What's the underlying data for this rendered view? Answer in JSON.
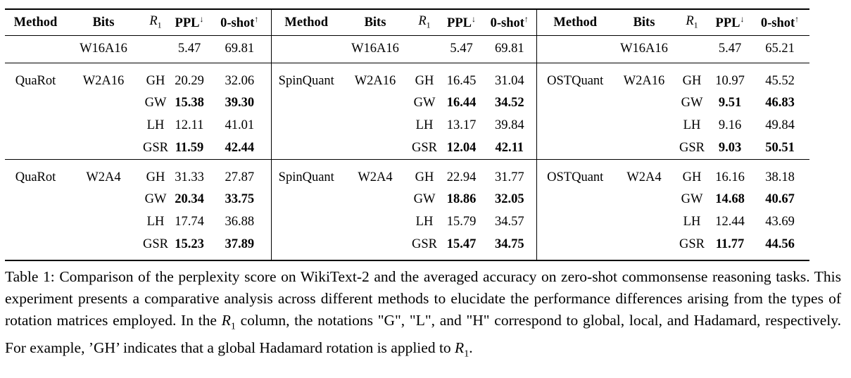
{
  "table": {
    "headers": {
      "method": "Method",
      "bits": "Bits",
      "r1_letter": "R",
      "r1_sub": "1",
      "ppl": "PPL",
      "ppl_arrow": "↓",
      "zeroshot": "0-shot",
      "zeroshot_arrow": "↑"
    },
    "baseline": [
      {
        "bits": "W16A16",
        "ppl": "5.47",
        "zeroshot": "69.81"
      },
      {
        "bits": "W16A16",
        "ppl": "5.47",
        "zeroshot": "69.81"
      },
      {
        "bits": "W16A16",
        "ppl": "5.47",
        "zeroshot": "65.21"
      }
    ],
    "groups": [
      {
        "blocks": [
          {
            "method": "QuaRot",
            "bits": "W2A16",
            "rows": [
              {
                "r1": "GH",
                "ppl": "20.29",
                "zeroshot": "32.06"
              },
              {
                "r1": "GW",
                "ppl": "15.38",
                "zeroshot": "39.30"
              },
              {
                "r1": "LH",
                "ppl": "12.11",
                "zeroshot": "41.01"
              },
              {
                "r1": "GSR",
                "ppl": "11.59",
                "zeroshot": "42.44"
              }
            ]
          },
          {
            "method": "SpinQuant",
            "bits": "W2A16",
            "rows": [
              {
                "r1": "GH",
                "ppl": "16.45",
                "zeroshot": "31.04"
              },
              {
                "r1": "GW",
                "ppl": "16.44",
                "zeroshot": "34.52"
              },
              {
                "r1": "LH",
                "ppl": "13.17",
                "zeroshot": "39.84"
              },
              {
                "r1": "GSR",
                "ppl": "12.04",
                "zeroshot": "42.11"
              }
            ]
          },
          {
            "method": "OSTQuant",
            "bits": "W2A16",
            "rows": [
              {
                "r1": "GH",
                "ppl": "10.97",
                "zeroshot": "45.52"
              },
              {
                "r1": "GW",
                "ppl": "9.51",
                "zeroshot": "46.83"
              },
              {
                "r1": "LH",
                "ppl": "9.16",
                "zeroshot": "49.84"
              },
              {
                "r1": "GSR",
                "ppl": "9.03",
                "zeroshot": "50.51"
              }
            ]
          }
        ]
      },
      {
        "blocks": [
          {
            "method": "QuaRot",
            "bits": "W2A4",
            "rows": [
              {
                "r1": "GH",
                "ppl": "31.33",
                "zeroshot": "27.87"
              },
              {
                "r1": "GW",
                "ppl": "20.34",
                "zeroshot": "33.75"
              },
              {
                "r1": "LH",
                "ppl": "17.74",
                "zeroshot": "36.88"
              },
              {
                "r1": "GSR",
                "ppl": "15.23",
                "zeroshot": "37.89"
              }
            ]
          },
          {
            "method": "SpinQuant",
            "bits": "W2A4",
            "rows": [
              {
                "r1": "GH",
                "ppl": "22.94",
                "zeroshot": "31.77"
              },
              {
                "r1": "GW",
                "ppl": "18.86",
                "zeroshot": "32.05"
              },
              {
                "r1": "LH",
                "ppl": "15.79",
                "zeroshot": "34.57"
              },
              {
                "r1": "GSR",
                "ppl": "15.47",
                "zeroshot": "34.75"
              }
            ]
          },
          {
            "method": "OSTQuant",
            "bits": "W2A4",
            "rows": [
              {
                "r1": "GH",
                "ppl": "16.16",
                "zeroshot": "38.18"
              },
              {
                "r1": "GW",
                "ppl": "14.68",
                "zeroshot": "40.67"
              },
              {
                "r1": "LH",
                "ppl": "12.44",
                "zeroshot": "43.69"
              },
              {
                "r1": "GSR",
                "ppl": "11.77",
                "zeroshot": "44.56"
              }
            ]
          }
        ]
      }
    ],
    "bold_rows": [
      "GW",
      "GSR"
    ]
  },
  "caption": {
    "part1": "Table 1: Comparison of the perplexity score on WikiText-2 and the averaged accuracy on zero-shot commonsense reasoning tasks. This experiment presents a comparative analysis across different methods to elucidate the performance differences arising from the types of rotation matrices employed. In the ",
    "math_letter": "R",
    "math_sub": "1",
    "part2": " column, the notations \"G\", \"L\", and \"H\" correspond to global, local, and Hadamard, respectively. For example, ’GH’ indicates that a global Hadamard rotation is applied to ",
    "part3": "."
  }
}
